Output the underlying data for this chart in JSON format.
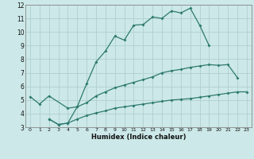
{
  "xlabel": "Humidex (Indice chaleur)",
  "bg_color": "#cce8e8",
  "line_color": "#2d7a6e",
  "grid_color": "#b0d0d0",
  "xlim": [
    -0.5,
    23.5
  ],
  "ylim": [
    3,
    12
  ],
  "xticks": [
    0,
    1,
    2,
    3,
    4,
    5,
    6,
    7,
    8,
    9,
    10,
    11,
    12,
    13,
    14,
    15,
    16,
    17,
    18,
    19,
    20,
    21,
    22,
    23
  ],
  "yticks": [
    3,
    4,
    5,
    6,
    7,
    8,
    9,
    10,
    11,
    12
  ],
  "line1_x": [
    0,
    1,
    2,
    4,
    5,
    6,
    7,
    8,
    9,
    10,
    11,
    12,
    13,
    14,
    15,
    16,
    17,
    18,
    19
  ],
  "line1_y": [
    5.25,
    4.7,
    5.3,
    4.4,
    4.5,
    6.2,
    7.8,
    8.6,
    9.7,
    9.4,
    10.5,
    10.55,
    11.1,
    11.0,
    11.55,
    11.4,
    11.75,
    10.5,
    9.0
  ],
  "line2_x": [
    2,
    3,
    4,
    5,
    6,
    7,
    8,
    9,
    10,
    11,
    12,
    13,
    14,
    15,
    16,
    17,
    18,
    19,
    20,
    21,
    22
  ],
  "line2_y": [
    3.6,
    3.2,
    3.3,
    4.5,
    4.8,
    5.3,
    5.6,
    5.9,
    6.1,
    6.3,
    6.5,
    6.7,
    7.0,
    7.15,
    7.25,
    7.4,
    7.5,
    7.6,
    7.55,
    7.6,
    6.65
  ],
  "line3_x": [
    2,
    3,
    4,
    5,
    6,
    7,
    8,
    9,
    10,
    11,
    12,
    13,
    14,
    15,
    16,
    17,
    18,
    19,
    20,
    21,
    22,
    23
  ],
  "line3_y": [
    3.6,
    3.2,
    3.3,
    3.6,
    3.85,
    4.05,
    4.2,
    4.4,
    4.5,
    4.6,
    4.7,
    4.8,
    4.9,
    5.0,
    5.05,
    5.1,
    5.2,
    5.3,
    5.4,
    5.5,
    5.6,
    5.6
  ]
}
